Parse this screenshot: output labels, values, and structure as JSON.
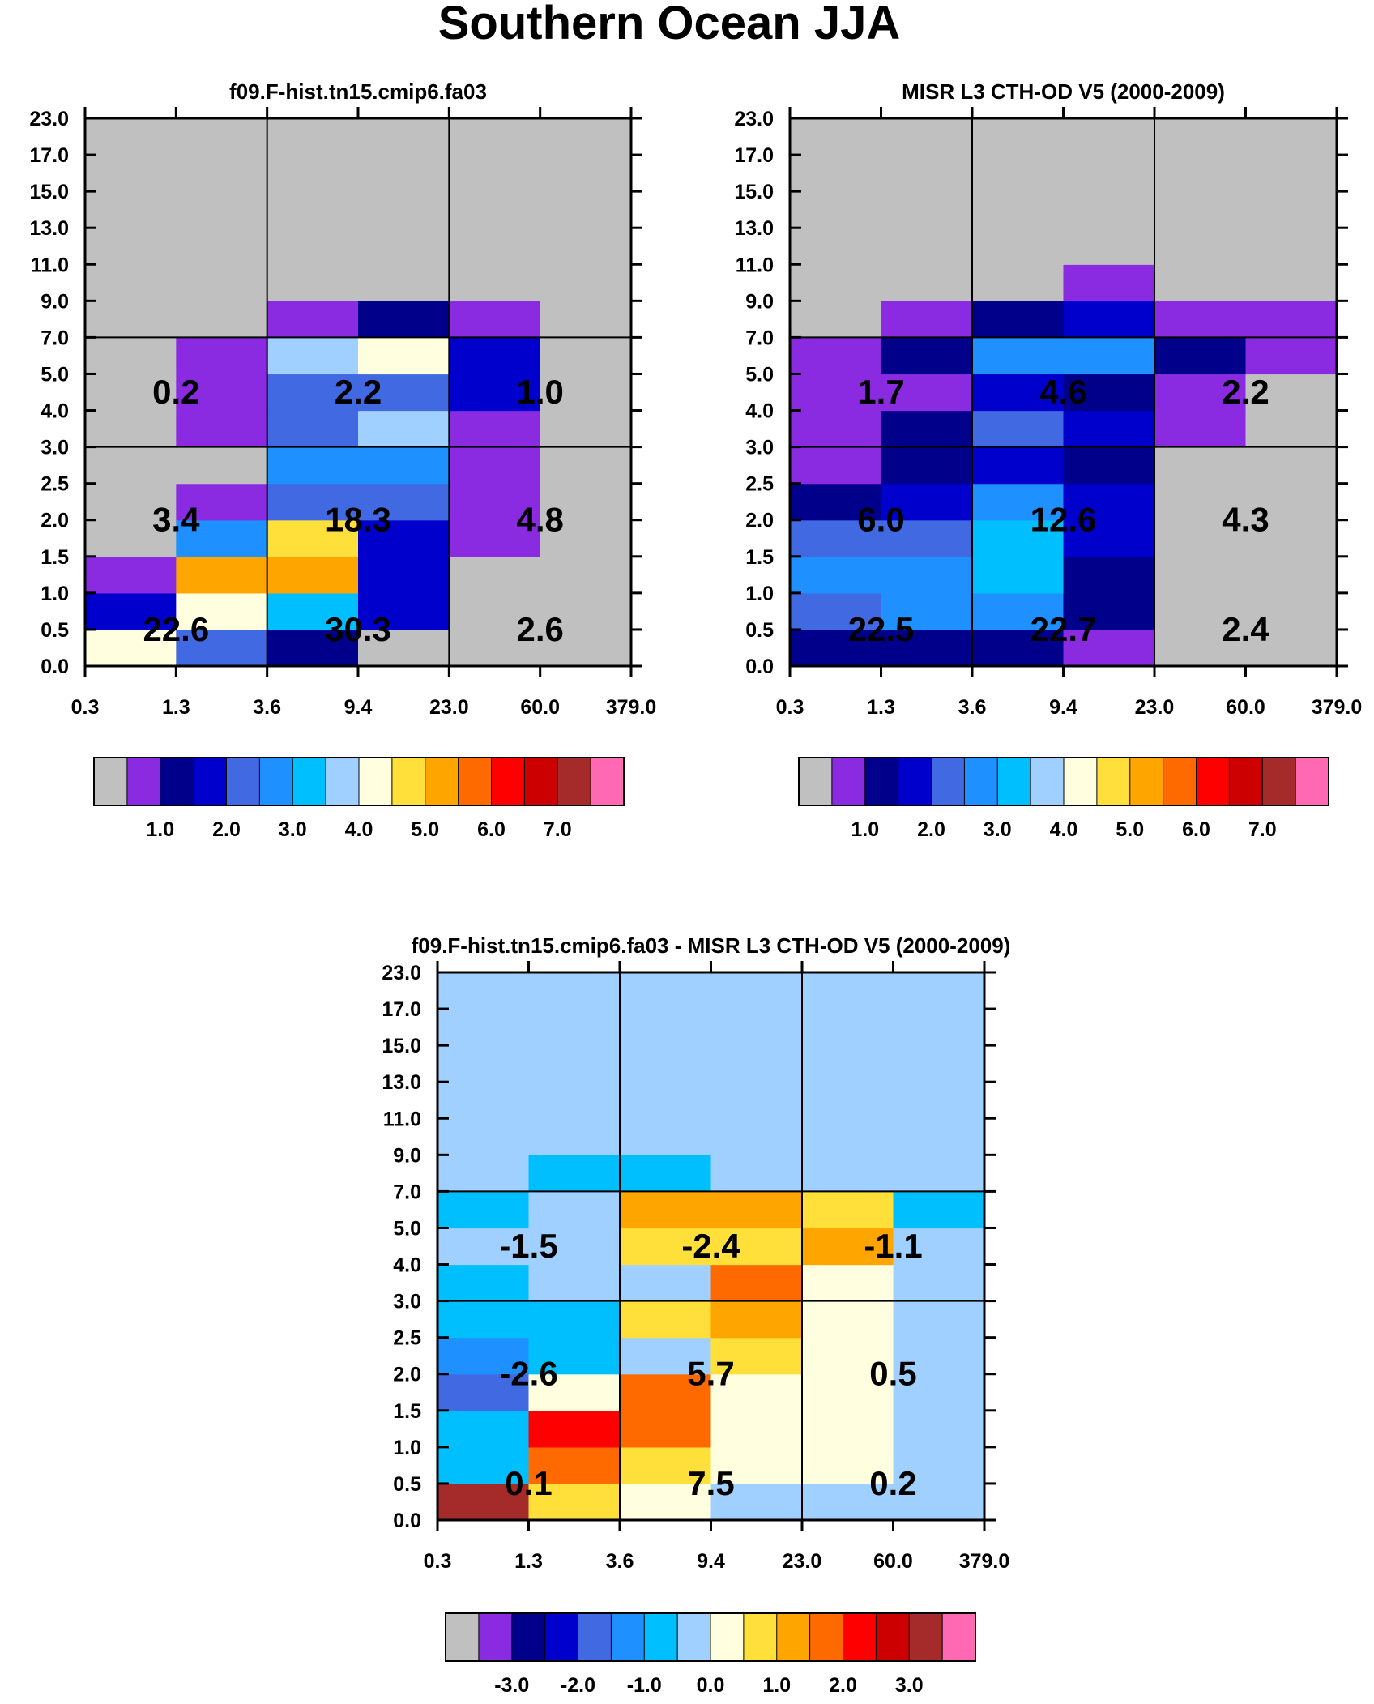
{
  "page": {
    "title": "Southern Ocean JJA"
  },
  "palettes": {
    "abs": [
      "#c0c0c0",
      "#8a2be2",
      "#00008b",
      "#0000cd",
      "#4169e1",
      "#1e90ff",
      "#00bfff",
      "#a0d0ff",
      "#ffffe0",
      "#ffdf3a",
      "#ffa500",
      "#ff6a00",
      "#ff0000",
      "#cc0000",
      "#a52a2a",
      "#ff69b4"
    ],
    "diff": [
      "#c0c0c0",
      "#8a2be2",
      "#00008b",
      "#0000cd",
      "#4169e1",
      "#1e90ff",
      "#00bfff",
      "#a0d0ff",
      "#ffffe0",
      "#ffdf3a",
      "#ffa500",
      "#ff6a00",
      "#ff0000",
      "#cc0000",
      "#a52a2a",
      "#ff69b4"
    ]
  },
  "chart_data": [
    {
      "id": "model",
      "type": "heatmap",
      "title": "f09.F-hist.tn15.cmip6.fa03",
      "x_ticks": [
        "0.3",
        "1.3",
        "3.6",
        "9.4",
        "23.0",
        "60.0",
        "379.0"
      ],
      "y_ticks": [
        "0.0",
        "0.5",
        "1.0",
        "1.5",
        "2.0",
        "2.5",
        "3.0",
        "4.0",
        "5.0",
        "7.0",
        "9.0",
        "11.0",
        "13.0",
        "15.0",
        "17.0",
        "23.0"
      ],
      "cells_color_index_bottom_to_top": [
        [
          8,
          4,
          2,
          0,
          0,
          0
        ],
        [
          3,
          8,
          6,
          3,
          0,
          0
        ],
        [
          1,
          10,
          10,
          3,
          0,
          0
        ],
        [
          0,
          5,
          9,
          3,
          1,
          0
        ],
        [
          0,
          1,
          4,
          4,
          1,
          0
        ],
        [
          0,
          0,
          5,
          5,
          1,
          0
        ],
        [
          0,
          1,
          4,
          7,
          1,
          0
        ],
        [
          0,
          1,
          4,
          4,
          3,
          0
        ],
        [
          0,
          1,
          7,
          8,
          3,
          0
        ],
        [
          0,
          0,
          1,
          2,
          1,
          0
        ],
        [
          0,
          0,
          0,
          0,
          0,
          0
        ],
        [
          0,
          0,
          0,
          0,
          0,
          0
        ],
        [
          0,
          0,
          0,
          0,
          0,
          0
        ],
        [
          0,
          0,
          0,
          0,
          0,
          0
        ],
        [
          0,
          0,
          0,
          0,
          0,
          0
        ]
      ],
      "region_totals": {
        "low": [
          "22.6",
          "30.3",
          "2.6"
        ],
        "mid": [
          "3.4",
          "18.3",
          "4.8"
        ],
        "high": [
          "0.2",
          "2.2",
          "1.0"
        ]
      },
      "colorbar_labels": [
        "1.0",
        "2.0",
        "3.0",
        "4.0",
        "5.0",
        "6.0",
        "7.0"
      ]
    },
    {
      "id": "obs",
      "type": "heatmap",
      "title": "MISR L3 CTH-OD V5 (2000-2009)",
      "x_ticks": [
        "0.3",
        "1.3",
        "3.6",
        "9.4",
        "23.0",
        "60.0",
        "379.0"
      ],
      "y_ticks": [
        "0.0",
        "0.5",
        "1.0",
        "1.5",
        "2.0",
        "2.5",
        "3.0",
        "4.0",
        "5.0",
        "7.0",
        "9.0",
        "11.0",
        "13.0",
        "15.0",
        "17.0",
        "23.0"
      ],
      "cells_color_index_bottom_to_top": [
        [
          2,
          2,
          2,
          1,
          0,
          0
        ],
        [
          4,
          5,
          5,
          2,
          0,
          0
        ],
        [
          5,
          5,
          6,
          2,
          0,
          0
        ],
        [
          4,
          4,
          6,
          3,
          0,
          0
        ],
        [
          2,
          3,
          5,
          3,
          0,
          0
        ],
        [
          1,
          2,
          3,
          2,
          0,
          0
        ],
        [
          1,
          2,
          4,
          3,
          1,
          0
        ],
        [
          1,
          1,
          3,
          2,
          1,
          0
        ],
        [
          1,
          2,
          5,
          5,
          2,
          1
        ],
        [
          0,
          1,
          2,
          3,
          1,
          1
        ],
        [
          0,
          0,
          0,
          1,
          0,
          0
        ],
        [
          0,
          0,
          0,
          0,
          0,
          0
        ],
        [
          0,
          0,
          0,
          0,
          0,
          0
        ],
        [
          0,
          0,
          0,
          0,
          0,
          0
        ],
        [
          0,
          0,
          0,
          0,
          0,
          0
        ]
      ],
      "region_totals": {
        "low": [
          "22.5",
          "22.7",
          "2.4"
        ],
        "mid": [
          "6.0",
          "12.6",
          "4.3"
        ],
        "high": [
          "1.7",
          "4.6",
          "2.2"
        ]
      },
      "colorbar_labels": [
        "1.0",
        "2.0",
        "3.0",
        "4.0",
        "5.0",
        "6.0",
        "7.0"
      ]
    },
    {
      "id": "diff",
      "type": "heatmap",
      "title": "f09.F-hist.tn15.cmip6.fa03 - MISR L3 CTH-OD V5 (2000-2009)",
      "x_ticks": [
        "0.3",
        "1.3",
        "3.6",
        "9.4",
        "23.0",
        "60.0",
        "379.0"
      ],
      "y_ticks": [
        "0.0",
        "0.5",
        "1.0",
        "1.5",
        "2.0",
        "2.5",
        "3.0",
        "4.0",
        "5.0",
        "7.0",
        "9.0",
        "11.0",
        "13.0",
        "15.0",
        "17.0",
        "23.0"
      ],
      "cells_color_index_bottom_to_top": [
        [
          14,
          9,
          8,
          7,
          7,
          7
        ],
        [
          6,
          11,
          9,
          8,
          8,
          7
        ],
        [
          6,
          12,
          11,
          8,
          8,
          7
        ],
        [
          4,
          8,
          11,
          8,
          8,
          7
        ],
        [
          5,
          6,
          7,
          9,
          8,
          7
        ],
        [
          6,
          6,
          9,
          10,
          8,
          7
        ],
        [
          6,
          7,
          7,
          11,
          8,
          7
        ],
        [
          7,
          7,
          9,
          9,
          10,
          7
        ],
        [
          6,
          7,
          10,
          10,
          9,
          6
        ],
        [
          7,
          6,
          6,
          7,
          7,
          7
        ],
        [
          7,
          7,
          7,
          7,
          7,
          7
        ],
        [
          7,
          7,
          7,
          7,
          7,
          7
        ],
        [
          7,
          7,
          7,
          7,
          7,
          7
        ],
        [
          7,
          7,
          7,
          7,
          7,
          7
        ],
        [
          7,
          7,
          7,
          7,
          7,
          7
        ]
      ],
      "region_totals": {
        "low": [
          "0.1",
          "7.5",
          "0.2"
        ],
        "mid": [
          "-2.6",
          "5.7",
          "0.5"
        ],
        "high": [
          "-1.5",
          "-2.4",
          "-1.1"
        ]
      },
      "colorbar_labels": [
        "-3.0",
        "-2.0",
        "-1.0",
        "0.0",
        "1.0",
        "2.0",
        "3.0"
      ]
    }
  ]
}
